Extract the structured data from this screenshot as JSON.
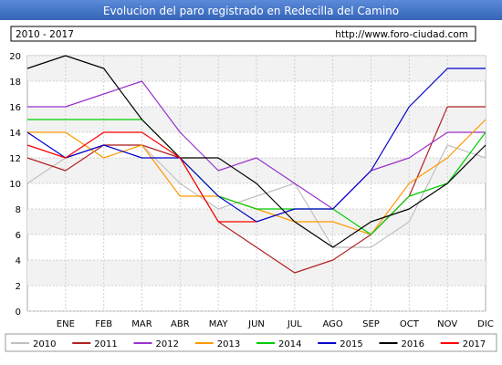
{
  "chart_data": {
    "type": "line",
    "title": "Evolucion del paro registrado en Redecilla del Camino",
    "period": "2010 - 2017",
    "url": "http://www.foro-ciudad.com",
    "categories": [
      "",
      "ENE",
      "FEB",
      "MAR",
      "ABR",
      "MAY",
      "JUN",
      "JUL",
      "AGO",
      "SEP",
      "OCT",
      "NOV",
      "DIC"
    ],
    "ylim": [
      0,
      20
    ],
    "yticks": [
      0,
      2,
      4,
      6,
      8,
      10,
      12,
      14,
      16,
      18,
      20
    ],
    "grid": true,
    "legend_position": "bottom",
    "series": [
      {
        "name": "2010",
        "color": "#c0c0c0",
        "values": [
          10,
          12,
          13,
          13,
          10,
          8,
          9,
          10,
          5,
          5,
          7,
          13,
          12
        ]
      },
      {
        "name": "2011",
        "color": "#b22222",
        "values": [
          12,
          11,
          13,
          13,
          12,
          7,
          5,
          3,
          4,
          6,
          9,
          16,
          16
        ]
      },
      {
        "name": "2012",
        "color": "#9932cc",
        "values": [
          16,
          16,
          17,
          18,
          14,
          11,
          12,
          10,
          8,
          11,
          12,
          14,
          14
        ]
      },
      {
        "name": "2013",
        "color": "#ff9900",
        "values": [
          14,
          14,
          12,
          13,
          9,
          9,
          8,
          7,
          7,
          6,
          10,
          12,
          15
        ]
      },
      {
        "name": "2014",
        "color": "#00cc00",
        "values": [
          15,
          15,
          15,
          15,
          12,
          9,
          8,
          8,
          8,
          6,
          9,
          10,
          14
        ]
      },
      {
        "name": "2015",
        "color": "#0000cc",
        "values": [
          14,
          12,
          13,
          12,
          12,
          9,
          7,
          8,
          8,
          11,
          16,
          19,
          19
        ]
      },
      {
        "name": "2016",
        "color": "#000000",
        "values": [
          19,
          20,
          19,
          15,
          12,
          12,
          10,
          7,
          5,
          7,
          8,
          10,
          13
        ]
      },
      {
        "name": "2017",
        "color": "#ff0000",
        "values": [
          13,
          12,
          14,
          14,
          12,
          7,
          7,
          null,
          null,
          null,
          null,
          null,
          null
        ]
      }
    ]
  }
}
